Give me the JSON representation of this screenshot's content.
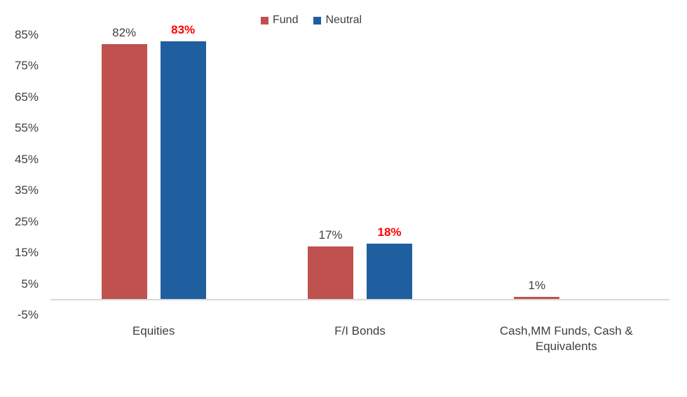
{
  "chart_data": {
    "type": "bar",
    "title": "",
    "categories": [
      "Equities",
      "F/I Bonds",
      "Cash,MM Funds, Cash & Equivalents"
    ],
    "series": [
      {
        "name": "Fund",
        "color": "#bf514f",
        "label_color": "#3f3f3f",
        "label_weight": "normal",
        "values": [
          82,
          17,
          1
        ],
        "labels": [
          "82%",
          "17%",
          "1%"
        ]
      },
      {
        "name": "Neutral",
        "color": "#1f5f9f",
        "label_color": "#ff0000",
        "label_weight": "bold",
        "values": [
          83,
          18,
          0
        ],
        "labels": [
          "83%",
          "18%",
          ""
        ]
      }
    ],
    "xlabel": "",
    "ylabel": "",
    "ylim": [
      -5,
      85
    ],
    "y_tick_step": 10,
    "y_ticks": [
      "85%",
      "75%",
      "65%",
      "55%",
      "45%",
      "35%",
      "25%",
      "15%",
      "5%",
      "-5%"
    ],
    "grid": false,
    "legend_position": "top",
    "legend_entries": [
      "Fund",
      "Neutral"
    ],
    "axis_line_color": "#d9d9d9",
    "background_color": "#ffffff",
    "unit": "%"
  }
}
